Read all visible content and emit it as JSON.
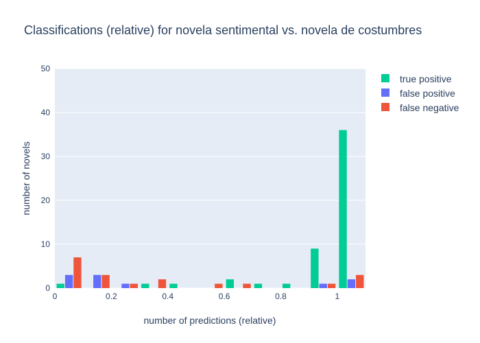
{
  "chart_data": {
    "type": "bar",
    "title": "Classifications (relative) for novela sentimental vs. novela de costumbres",
    "xlabel": "number of predictions (relative)",
    "ylabel": "number of novels",
    "xlim": [
      0,
      1.1
    ],
    "ylim": [
      0,
      50
    ],
    "bin_width": 0.1,
    "x_ticks": [
      {
        "value": 0,
        "label": "0"
      },
      {
        "value": 0.2,
        "label": "0.2"
      },
      {
        "value": 0.4,
        "label": "0.4"
      },
      {
        "value": 0.6,
        "label": "0.6"
      },
      {
        "value": 0.8,
        "label": "0.8"
      },
      {
        "value": 1,
        "label": "1"
      }
    ],
    "y_ticks": [
      {
        "value": 0,
        "label": "0"
      },
      {
        "value": 10,
        "label": "10"
      },
      {
        "value": 20,
        "label": "20"
      },
      {
        "value": 30,
        "label": "30"
      },
      {
        "value": 40,
        "label": "40"
      },
      {
        "value": 50,
        "label": "50"
      }
    ],
    "bins": [
      0.0,
      0.1,
      0.2,
      0.3,
      0.4,
      0.5,
      0.6,
      0.7,
      0.8,
      0.9,
      1.0
    ],
    "series": [
      {
        "name": "true positive",
        "color": "#00cc96",
        "values": [
          1,
          0,
          0,
          1,
          1,
          0,
          2,
          1,
          1,
          9,
          36
        ]
      },
      {
        "name": "false positive",
        "color": "#636efa",
        "values": [
          3,
          3,
          1,
          0,
          0,
          0,
          0,
          0,
          0,
          1,
          2
        ]
      },
      {
        "name": "false negative",
        "color": "#ef553b",
        "values": [
          7,
          3,
          1,
          2,
          0,
          1,
          1,
          0,
          0,
          1,
          3
        ]
      }
    ],
    "grid": true,
    "legend_position": "top-right",
    "plot_background": "#e5ecf6",
    "grid_color": "#ffffff",
    "text_color": "#2a3f5f"
  }
}
